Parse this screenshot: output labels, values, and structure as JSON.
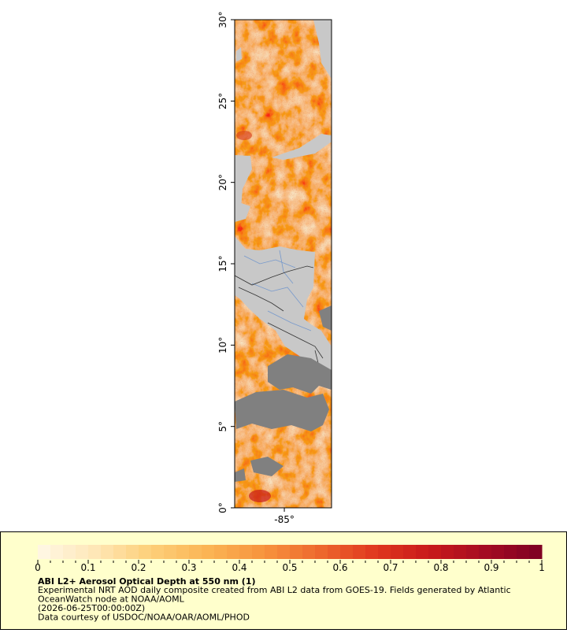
{
  "map": {
    "xlim": [
      -88.05,
      -82.1
    ],
    "ylim": [
      0,
      30
    ],
    "xticks": [
      {
        "value": -85,
        "label": "-85°"
      }
    ],
    "yticks": [
      {
        "value": 0,
        "label": "0°"
      },
      {
        "value": 5,
        "label": "5°"
      },
      {
        "value": 10,
        "label": "10°"
      },
      {
        "value": 15,
        "label": "15°"
      },
      {
        "value": 20,
        "label": "20°"
      },
      {
        "value": 25,
        "label": "25°"
      },
      {
        "value": 30,
        "label": "30°"
      }
    ]
  },
  "colorbar": {
    "lim": [
      0,
      1
    ],
    "ticks": [
      0,
      0.1,
      0.2,
      0.3,
      0.4,
      0.5,
      0.6,
      0.7,
      0.8,
      0.9,
      1
    ],
    "colors": [
      "#fff8e6",
      "#fee7b8",
      "#fdd07a",
      "#fbb555",
      "#f7953e",
      "#ee6a2e",
      "#e0391f",
      "#c81a1a",
      "#a40b22",
      "#7d0023"
    ],
    "title": "ABI L2+ Aerosol Optical Depth at 550 nm (1)",
    "lines": [
      "Experimental NRT AOD daily composite created from ABI L2 data from GOES-19. Fields generated by Atlantic",
      "OceanWatch node at NOAA/AOML",
      "(2026-06-25T00:00:00Z)",
      "Data courtesy of USDOC/NOAA/OAR/AOML/PHOD"
    ]
  }
}
